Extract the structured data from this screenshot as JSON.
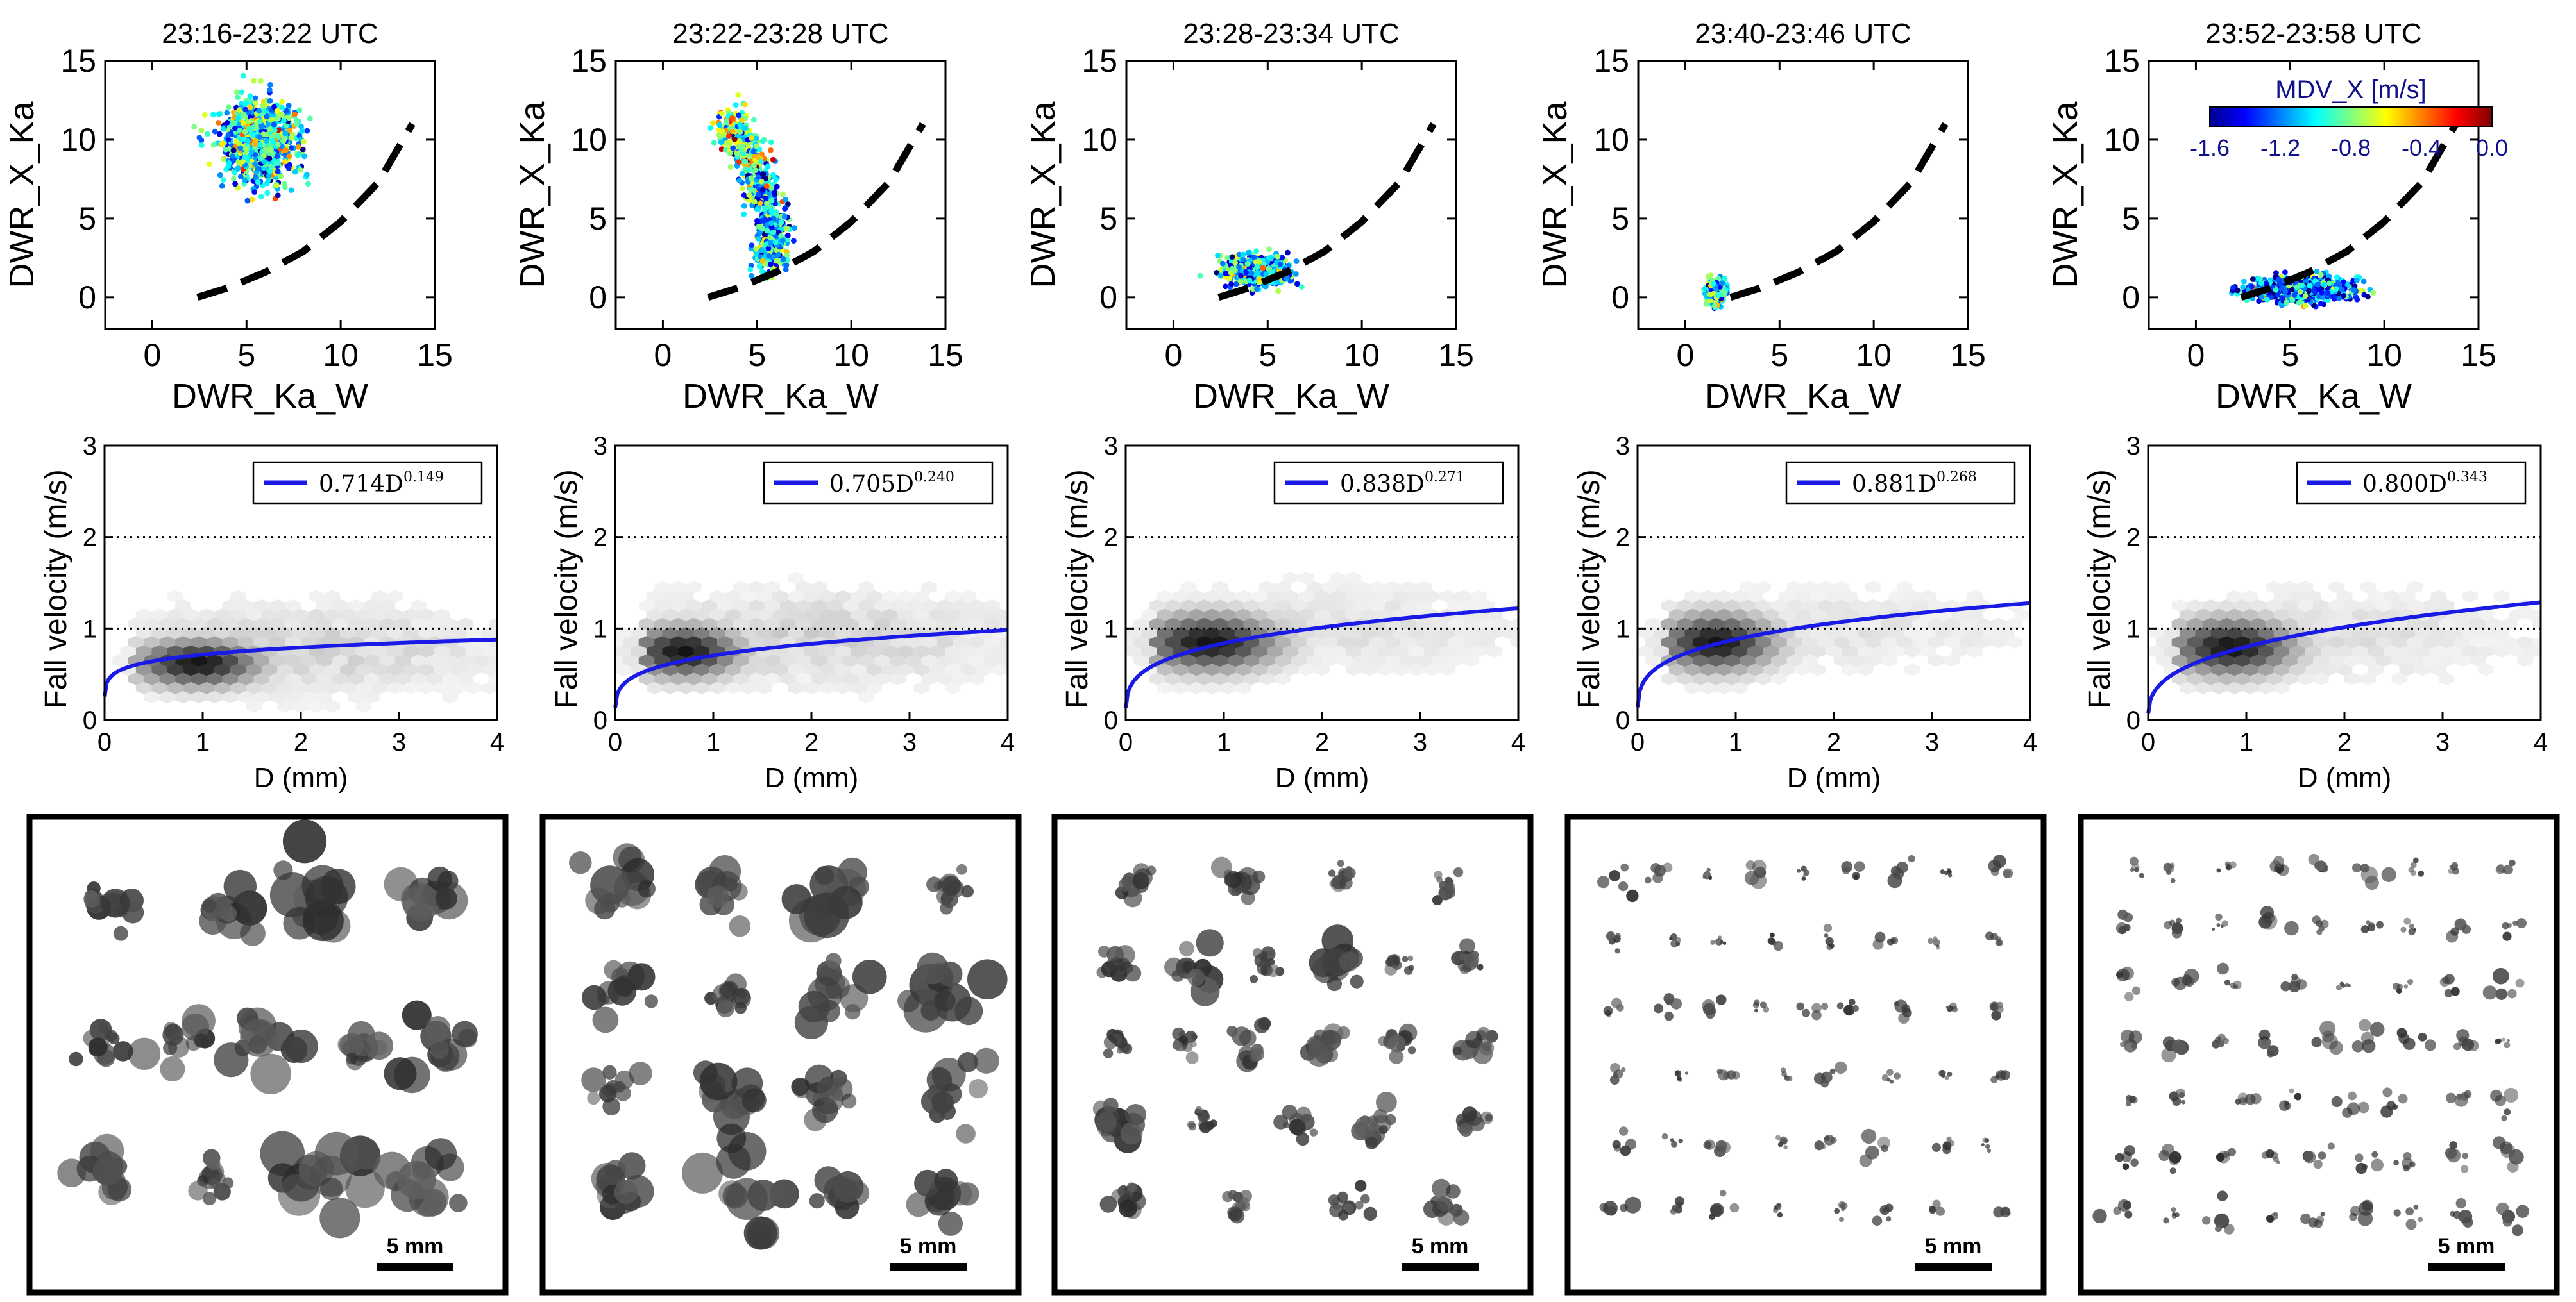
{
  "chart_data": [
    {
      "type": "scatter",
      "title": "23:16-23:22 UTC",
      "xlabel": "DWR_Ka_W",
      "ylabel": "DWR_X_Ka",
      "xlim": [
        -2.5,
        15
      ],
      "ylim": [
        -2,
        15
      ],
      "xticks": [
        "0",
        "5",
        "10",
        "15"
      ],
      "yticks": [
        "0",
        "5",
        "10",
        "15"
      ],
      "colorbar": null,
      "reference_curve": {
        "style": "dashed",
        "color": "#000000",
        "x": [
          2.4,
          4,
          6,
          8,
          10,
          12,
          13.8
        ],
        "y": [
          0.0,
          0.6,
          1.6,
          2.9,
          4.8,
          7.3,
          11.0
        ]
      },
      "cloud": {
        "x_center": 5.7,
        "y_center": 9.9,
        "x_spread": 2.0,
        "y_spread": 2.6,
        "mdv_mean": -0.95,
        "n": 900
      }
    },
    {
      "type": "scatter",
      "title": "23:22-23:28 UTC",
      "xlabel": "DWR_Ka_W",
      "ylabel": "DWR_X_Ka",
      "xlim": [
        -2.5,
        15
      ],
      "ylim": [
        -2,
        15
      ],
      "xticks": [
        "0",
        "5",
        "10",
        "15"
      ],
      "yticks": [
        "0",
        "5",
        "10",
        "15"
      ],
      "colorbar": null,
      "reference_curve": {
        "style": "dashed",
        "color": "#000000",
        "x": [
          2.4,
          4,
          6,
          8,
          10,
          12,
          13.8
        ],
        "y": [
          0.0,
          0.6,
          1.6,
          2.9,
          4.8,
          7.3,
          11.0
        ]
      },
      "cloud_path": {
        "x": [
          3.4,
          4.0,
          4.6,
          5.0,
          5.3,
          5.6,
          5.8,
          6.0,
          5.8,
          5.4
        ],
        "y": [
          11.5,
          10.2,
          9.2,
          8.0,
          6.8,
          5.6,
          4.4,
          3.4,
          2.8,
          2.2
        ],
        "mdv_mean": -1.1,
        "n": 800
      }
    },
    {
      "type": "scatter",
      "title": "23:28-23:34 UTC",
      "xlabel": "DWR_Ka_W",
      "ylabel": "DWR_X_Ka",
      "xlim": [
        -2.5,
        15
      ],
      "ylim": [
        -2,
        15
      ],
      "xticks": [
        "0",
        "5",
        "10",
        "15"
      ],
      "yticks": [
        "0",
        "5",
        "10",
        "15"
      ],
      "colorbar": null,
      "reference_curve": {
        "style": "dashed",
        "color": "#000000",
        "x": [
          2.4,
          4,
          6,
          8,
          10,
          12,
          13.8
        ],
        "y": [
          0.0,
          0.6,
          1.6,
          2.9,
          4.8,
          7.3,
          11.0
        ]
      },
      "cloud": {
        "x_center": 4.4,
        "y_center": 1.7,
        "x_spread": 1.6,
        "y_spread": 0.85,
        "mdv_mean": -1.05,
        "n": 700
      }
    },
    {
      "type": "scatter",
      "title": "23:40-23:46 UTC",
      "xlabel": "DWR_Ka_W",
      "ylabel": "DWR_X_Ka",
      "xlim": [
        -2.5,
        15
      ],
      "ylim": [
        -2,
        15
      ],
      "xticks": [
        "0",
        "5",
        "10",
        "15"
      ],
      "yticks": [
        "0",
        "5",
        "10",
        "15"
      ],
      "colorbar": null,
      "reference_curve": {
        "style": "dashed",
        "color": "#000000",
        "x": [
          2.4,
          4,
          6,
          8,
          10,
          12,
          13.8
        ],
        "y": [
          0.0,
          0.6,
          1.6,
          2.9,
          4.8,
          7.3,
          11.0
        ]
      },
      "cloud": {
        "x_center": 1.6,
        "y_center": 0.3,
        "x_spread": 0.45,
        "y_spread": 0.7,
        "mdv_mean": -0.95,
        "n": 450
      }
    },
    {
      "type": "scatter",
      "title": "23:52-23:58 UTC",
      "xlabel": "DWR_Ka_W",
      "ylabel": "DWR_X_Ka",
      "xlim": [
        -2.5,
        15
      ],
      "ylim": [
        -2,
        15
      ],
      "xticks": [
        "0",
        "5",
        "10",
        "15"
      ],
      "yticks": [
        "0",
        "5",
        "10",
        "15"
      ],
      "colorbar": {
        "label": "MDV_X [m/s]",
        "min": -1.6,
        "max": 0.0,
        "ticks": [
          "-1.6",
          "-1.2",
          "-0.8",
          "-0.4",
          "0.0"
        ],
        "colors": [
          "#00008f",
          "#0000ff",
          "#0080ff",
          "#00ffff",
          "#80ff80",
          "#ffff00",
          "#ff8000",
          "#ff0000",
          "#800000"
        ]
      },
      "reference_curve": {
        "style": "dashed",
        "color": "#000000",
        "x": [
          2.4,
          4,
          6,
          8,
          10,
          12,
          13.8
        ],
        "y": [
          0.0,
          0.6,
          1.6,
          2.9,
          4.8,
          7.3,
          11.0
        ]
      },
      "cloud": {
        "x_center": 5.6,
        "y_center": 0.5,
        "x_spread": 2.6,
        "y_spread": 0.75,
        "mdv_mean": -1.2,
        "n": 900
      }
    },
    {
      "type": "heatmap",
      "xlabel": "D (mm)",
      "ylabel": "Fall velocity (m/s)",
      "xlim": [
        0,
        4
      ],
      "ylim": [
        0,
        3
      ],
      "xticks": [
        "0",
        "1",
        "2",
        "3",
        "4"
      ],
      "yticks": [
        "0",
        "1",
        "2",
        "3"
      ],
      "reference_lines": [
        1,
        2
      ],
      "fit": {
        "coef": 0.714,
        "exp": 0.149,
        "legend_base": "0.714D",
        "legend_exp": "0.149",
        "color": "#1a1ae6"
      },
      "density": {
        "center": [
          0.95,
          0.62
        ],
        "spread": [
          0.45,
          0.18
        ],
        "tail": 0.5
      }
    },
    {
      "type": "heatmap",
      "xlabel": "D (mm)",
      "ylabel": "Fall velocity (m/s)",
      "xlim": [
        0,
        4
      ],
      "ylim": [
        0,
        3
      ],
      "xticks": [
        "0",
        "1",
        "2",
        "3",
        "4"
      ],
      "yticks": [
        "0",
        "1",
        "2",
        "3"
      ],
      "reference_lines": [
        1,
        2
      ],
      "fit": {
        "coef": 0.705,
        "exp": 0.24,
        "legend_base": "0.705D",
        "legend_exp": "0.240",
        "color": "#1a1ae6"
      },
      "density": {
        "center": [
          0.7,
          0.75
        ],
        "spread": [
          0.4,
          0.2
        ],
        "tail": 0.5
      }
    },
    {
      "type": "heatmap",
      "xlabel": "D (mm)",
      "ylabel": "Fall velocity (m/s)",
      "xlim": [
        0,
        4
      ],
      "ylim": [
        0,
        3
      ],
      "xticks": [
        "0",
        "1",
        "2",
        "3",
        "4"
      ],
      "yticks": [
        "0",
        "1",
        "2",
        "3"
      ],
      "reference_lines": [
        1,
        2
      ],
      "fit": {
        "coef": 0.838,
        "exp": 0.271,
        "legend_base": "0.838D",
        "legend_exp": "0.271",
        "color": "#1a1ae6"
      },
      "density": {
        "center": [
          0.85,
          0.85
        ],
        "spread": [
          0.5,
          0.22
        ],
        "tail": 0.35
      }
    },
    {
      "type": "heatmap",
      "xlabel": "D (mm)",
      "ylabel": "Fall velocity (m/s)",
      "xlim": [
        0,
        4
      ],
      "ylim": [
        0,
        3
      ],
      "xticks": [
        "0",
        "1",
        "2",
        "3",
        "4"
      ],
      "yticks": [
        "0",
        "1",
        "2",
        "3"
      ],
      "reference_lines": [
        1,
        2
      ],
      "fit": {
        "coef": 0.881,
        "exp": 0.268,
        "legend_base": "0.881D",
        "legend_exp": "0.268",
        "color": "#1a1ae6"
      },
      "density": {
        "center": [
          0.8,
          0.85
        ],
        "spread": [
          0.42,
          0.22
        ],
        "tail": 0.3
      }
    },
    {
      "type": "heatmap",
      "xlabel": "D (mm)",
      "ylabel": "Fall velocity (m/s)",
      "xlim": [
        0,
        4
      ],
      "ylim": [
        0,
        3
      ],
      "xticks": [
        "0",
        "1",
        "2",
        "3",
        "4"
      ],
      "yticks": [
        "0",
        "1",
        "2",
        "3"
      ],
      "reference_lines": [
        1,
        2
      ],
      "fit": {
        "coef": 0.8,
        "exp": 0.343,
        "legend_base": "0.800D",
        "legend_exp": "0.343",
        "color": "#1a1ae6"
      },
      "density": {
        "center": [
          0.85,
          0.8
        ],
        "spread": [
          0.45,
          0.22
        ],
        "tail": 0.35
      }
    }
  ],
  "image_panels": [
    {
      "scale_label": "5 mm",
      "particle_grid": [
        [
          4,
          3
        ],
        [
          5,
          5
        ],
        [
          4,
          3
        ]
      ],
      "particle_size": "large"
    },
    {
      "scale_label": "5 mm",
      "particle_grid": [
        [
          4,
          3
        ],
        [
          4,
          3
        ],
        [
          4,
          2
        ],
        [
          4,
          3
        ]
      ],
      "particle_size": "large"
    },
    {
      "scale_label": "5 mm",
      "particle_grid": [
        [
          4,
          3
        ],
        [
          6,
          6
        ],
        [
          6,
          6
        ],
        [
          5,
          5
        ],
        [
          4,
          3
        ]
      ],
      "particle_size": "medium"
    },
    {
      "scale_label": "5 mm",
      "particle_grid": [
        [
          9,
          9
        ],
        [
          8,
          8
        ],
        [
          9,
          9
        ],
        [
          8,
          8
        ],
        [
          8,
          7
        ],
        [
          8,
          8
        ]
      ],
      "particle_size": "small"
    },
    {
      "scale_label": "5 mm",
      "particle_grid": [
        [
          9,
          9
        ],
        [
          9,
          9
        ],
        [
          8,
          8
        ],
        [
          9,
          9
        ],
        [
          8,
          8
        ],
        [
          9,
          9
        ],
        [
          9,
          9
        ]
      ],
      "particle_size": "small"
    }
  ]
}
